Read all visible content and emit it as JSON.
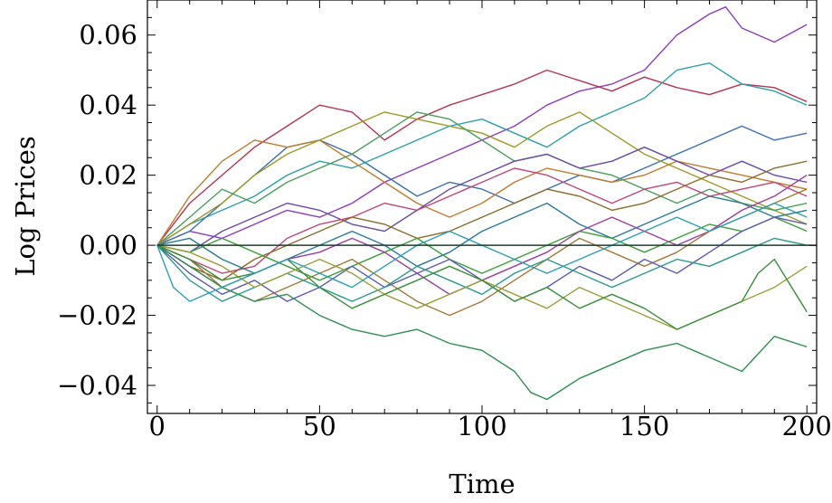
{
  "chart_data": {
    "type": "line",
    "title": "",
    "xlabel": "Time",
    "ylabel": "Log Prices",
    "xlim": [
      -3,
      203
    ],
    "ylim": [
      -0.048,
      0.07
    ],
    "x_ticks": [
      0,
      50,
      100,
      150,
      200
    ],
    "x_tick_labels": [
      "0",
      "50",
      "100",
      "150",
      "200"
    ],
    "y_ticks": [
      -0.04,
      -0.02,
      0.0,
      0.02,
      0.04,
      0.06
    ],
    "y_tick_labels": [
      "−0.04",
      "−0.02",
      "0.00",
      "0.02",
      "0.04",
      "0.06"
    ],
    "grid": false,
    "legend": "none",
    "reference_line": {
      "y": 0.0,
      "color": "#1a3d2b"
    },
    "series_style": "random-walk paths, each a jagged line starting at 0",
    "series": [
      {
        "color": "#8e3bbf",
        "x": [
          0,
          10,
          20,
          30,
          40,
          50,
          60,
          70,
          80,
          90,
          100,
          110,
          120,
          130,
          140,
          150,
          160,
          170,
          175,
          180,
          190,
          200
        ],
        "y": [
          0,
          0.004,
          0.002,
          0.006,
          0.01,
          0.008,
          0.012,
          0.018,
          0.022,
          0.026,
          0.03,
          0.034,
          0.04,
          0.044,
          0.046,
          0.05,
          0.06,
          0.066,
          0.068,
          0.062,
          0.058,
          0.063
        ]
      },
      {
        "color": "#b5344e",
        "x": [
          0,
          10,
          20,
          30,
          40,
          50,
          60,
          70,
          80,
          90,
          100,
          110,
          120,
          130,
          140,
          150,
          160,
          170,
          180,
          190,
          200
        ],
        "y": [
          0,
          0.012,
          0.02,
          0.028,
          0.034,
          0.04,
          0.038,
          0.03,
          0.036,
          0.04,
          0.043,
          0.046,
          0.05,
          0.047,
          0.044,
          0.048,
          0.045,
          0.043,
          0.046,
          0.045,
          0.041
        ]
      },
      {
        "color": "#2f9fa8",
        "x": [
          0,
          10,
          20,
          30,
          40,
          50,
          60,
          70,
          80,
          90,
          100,
          110,
          120,
          130,
          140,
          150,
          160,
          170,
          180,
          190,
          200
        ],
        "y": [
          0,
          0.006,
          0.01,
          0.014,
          0.02,
          0.024,
          0.022,
          0.026,
          0.03,
          0.034,
          0.036,
          0.032,
          0.028,
          0.034,
          0.038,
          0.042,
          0.05,
          0.052,
          0.046,
          0.044,
          0.04
        ]
      },
      {
        "color": "#3b6fb0",
        "x": [
          0,
          10,
          20,
          30,
          40,
          50,
          60,
          70,
          80,
          90,
          100,
          110,
          120,
          130,
          140,
          150,
          160,
          170,
          180,
          190,
          200
        ],
        "y": [
          0,
          0.004,
          0.012,
          0.02,
          0.028,
          0.03,
          0.026,
          0.02,
          0.014,
          0.018,
          0.016,
          0.012,
          0.016,
          0.02,
          0.018,
          0.022,
          0.026,
          0.03,
          0.034,
          0.03,
          0.032
        ]
      },
      {
        "color": "#c17b2f",
        "x": [
          0,
          10,
          20,
          30,
          40,
          50,
          60,
          70,
          80,
          90,
          100,
          110,
          120,
          130,
          140,
          150,
          160,
          170,
          180,
          190,
          200
        ],
        "y": [
          0,
          0.014,
          0.024,
          0.03,
          0.028,
          0.03,
          0.024,
          0.018,
          0.012,
          0.008,
          0.012,
          0.018,
          0.022,
          0.02,
          0.018,
          0.02,
          0.024,
          0.022,
          0.02,
          0.018,
          0.016
        ]
      },
      {
        "color": "#9a9a2a",
        "x": [
          0,
          10,
          20,
          30,
          40,
          50,
          60,
          70,
          80,
          90,
          100,
          110,
          120,
          130,
          140,
          150,
          160,
          170,
          180,
          190,
          200
        ],
        "y": [
          0,
          0.006,
          0.012,
          0.02,
          0.026,
          0.03,
          0.034,
          0.038,
          0.036,
          0.034,
          0.032,
          0.028,
          0.034,
          0.038,
          0.032,
          0.026,
          0.022,
          0.018,
          0.014,
          0.01,
          0.006
        ]
      },
      {
        "color": "#4c9e5c",
        "x": [
          0,
          10,
          20,
          30,
          40,
          50,
          60,
          70,
          80,
          90,
          100,
          110,
          120,
          130,
          140,
          150,
          160,
          170,
          180,
          190,
          200
        ],
        "y": [
          0,
          0.008,
          0.016,
          0.012,
          0.018,
          0.022,
          0.026,
          0.032,
          0.038,
          0.036,
          0.03,
          0.024,
          0.026,
          0.022,
          0.02,
          0.016,
          0.012,
          0.016,
          0.012,
          0.01,
          0.012
        ]
      },
      {
        "color": "#6a4aa8",
        "x": [
          0,
          10,
          20,
          30,
          40,
          50,
          60,
          70,
          80,
          90,
          100,
          110,
          120,
          130,
          140,
          150,
          160,
          170,
          180,
          190,
          200
        ],
        "y": [
          0,
          -0.002,
          0.004,
          0.008,
          0.012,
          0.01,
          0.006,
          0.004,
          0.01,
          0.016,
          0.02,
          0.024,
          0.026,
          0.022,
          0.024,
          0.028,
          0.024,
          0.02,
          0.024,
          0.02,
          0.018
        ]
      },
      {
        "color": "#c0457a",
        "x": [
          0,
          10,
          20,
          30,
          40,
          50,
          60,
          70,
          80,
          90,
          100,
          110,
          120,
          130,
          140,
          150,
          160,
          170,
          180,
          190,
          200
        ],
        "y": [
          0,
          -0.004,
          -0.008,
          -0.006,
          0.002,
          0.006,
          0.008,
          0.012,
          0.01,
          0.014,
          0.018,
          0.022,
          0.02,
          0.016,
          0.012,
          0.016,
          0.018,
          0.014,
          0.016,
          0.018,
          0.014
        ]
      },
      {
        "color": "#8a6b2a",
        "x": [
          0,
          10,
          20,
          30,
          40,
          50,
          60,
          70,
          80,
          90,
          100,
          110,
          120,
          130,
          140,
          150,
          160,
          170,
          180,
          190,
          200
        ],
        "y": [
          0,
          -0.006,
          -0.01,
          -0.004,
          0.0,
          0.004,
          0.008,
          0.006,
          0.002,
          0.004,
          0.008,
          0.012,
          0.016,
          0.014,
          0.01,
          0.012,
          0.016,
          0.02,
          0.018,
          0.022,
          0.024
        ]
      },
      {
        "color": "#2a7a9a",
        "x": [
          0,
          10,
          20,
          30,
          40,
          50,
          60,
          70,
          80,
          90,
          100,
          110,
          120,
          130,
          140,
          150,
          160,
          170,
          180,
          190,
          200
        ],
        "y": [
          0,
          0.002,
          -0.004,
          -0.008,
          -0.004,
          0.0,
          0.004,
          0.0,
          -0.006,
          -0.002,
          0.004,
          0.008,
          0.012,
          0.006,
          0.002,
          0.006,
          0.01,
          0.014,
          0.012,
          0.008,
          0.01
        ]
      },
      {
        "color": "#3d9e3d",
        "x": [
          0,
          10,
          20,
          30,
          40,
          50,
          60,
          70,
          80,
          90,
          100,
          110,
          120,
          130,
          140,
          150,
          160,
          170,
          180,
          190,
          200
        ],
        "y": [
          0,
          -0.002,
          0.002,
          -0.002,
          -0.006,
          -0.01,
          -0.006,
          -0.002,
          0.002,
          -0.004,
          -0.008,
          -0.004,
          0.0,
          0.004,
          0.002,
          -0.002,
          0.002,
          0.006,
          0.004,
          0.008,
          0.004
        ]
      },
      {
        "color": "#9b3e9b",
        "x": [
          0,
          10,
          20,
          30,
          40,
          50,
          60,
          70,
          80,
          90,
          100,
          110,
          120,
          130,
          140,
          150,
          160,
          170,
          180,
          190,
          200
        ],
        "y": [
          0,
          -0.006,
          -0.012,
          -0.008,
          -0.004,
          -0.002,
          0.002,
          -0.002,
          -0.008,
          -0.014,
          -0.01,
          -0.006,
          -0.002,
          0.004,
          0.008,
          0.004,
          0.0,
          0.004,
          0.01,
          0.014,
          0.02
        ]
      },
      {
        "color": "#a07a3a",
        "x": [
          0,
          10,
          20,
          30,
          40,
          50,
          60,
          70,
          80,
          90,
          100,
          110,
          120,
          130,
          140,
          150,
          160,
          170,
          180,
          190,
          200
        ],
        "y": [
          0,
          -0.004,
          -0.012,
          -0.016,
          -0.012,
          -0.008,
          -0.004,
          -0.01,
          -0.016,
          -0.02,
          -0.016,
          -0.01,
          -0.004,
          0.002,
          -0.002,
          -0.006,
          -0.002,
          0.004,
          0.008,
          0.012,
          0.016
        ]
      },
      {
        "color": "#5a5ab4",
        "x": [
          0,
          10,
          20,
          30,
          40,
          50,
          60,
          70,
          80,
          90,
          100,
          110,
          120,
          130,
          140,
          150,
          160,
          170,
          180,
          190,
          200
        ],
        "y": [
          0,
          -0.008,
          -0.014,
          -0.01,
          -0.016,
          -0.012,
          -0.006,
          -0.012,
          -0.008,
          -0.004,
          -0.01,
          -0.016,
          -0.012,
          -0.006,
          -0.01,
          -0.004,
          -0.008,
          -0.002,
          0.004,
          0.008,
          0.006
        ]
      },
      {
        "color": "#2a9a8a",
        "x": [
          0,
          10,
          20,
          30,
          40,
          50,
          60,
          70,
          80,
          90,
          100,
          110,
          120,
          130,
          140,
          150,
          160,
          170,
          180,
          190,
          200
        ],
        "y": [
          0,
          -0.01,
          -0.016,
          -0.012,
          -0.008,
          -0.012,
          -0.016,
          -0.012,
          -0.006,
          -0.01,
          -0.014,
          -0.008,
          -0.004,
          -0.008,
          -0.012,
          -0.008,
          -0.004,
          -0.006,
          -0.002,
          0.002,
          0.0
        ]
      },
      {
        "color": "#9aa03a",
        "x": [
          0,
          10,
          20,
          30,
          40,
          50,
          60,
          70,
          80,
          90,
          100,
          110,
          120,
          130,
          140,
          150,
          160,
          170,
          180,
          190,
          200
        ],
        "y": [
          0,
          -0.002,
          -0.006,
          -0.012,
          -0.008,
          -0.004,
          -0.008,
          -0.014,
          -0.018,
          -0.014,
          -0.01,
          -0.014,
          -0.018,
          -0.012,
          -0.016,
          -0.02,
          -0.024,
          -0.02,
          -0.016,
          -0.012,
          -0.006
        ]
      },
      {
        "color": "#3a8f3a",
        "x": [
          0,
          10,
          20,
          30,
          40,
          50,
          60,
          70,
          80,
          90,
          100,
          110,
          120,
          130,
          140,
          150,
          160,
          170,
          180,
          185,
          190,
          200
        ],
        "y": [
          0,
          -0.004,
          -0.01,
          -0.008,
          -0.004,
          -0.012,
          -0.018,
          -0.014,
          -0.01,
          -0.006,
          -0.01,
          -0.016,
          -0.012,
          -0.018,
          -0.014,
          -0.018,
          -0.024,
          -0.02,
          -0.016,
          -0.008,
          -0.004,
          -0.019
        ]
      },
      {
        "color": "#2f8f4f",
        "x": [
          0,
          10,
          20,
          30,
          40,
          50,
          60,
          70,
          80,
          90,
          100,
          110,
          115,
          120,
          130,
          140,
          150,
          160,
          170,
          180,
          190,
          200
        ],
        "y": [
          0,
          -0.006,
          -0.012,
          -0.016,
          -0.014,
          -0.02,
          -0.024,
          -0.026,
          -0.024,
          -0.028,
          -0.03,
          -0.036,
          -0.042,
          -0.044,
          -0.038,
          -0.034,
          -0.03,
          -0.028,
          -0.032,
          -0.036,
          -0.026,
          -0.029
        ]
      },
      {
        "color": "#2a9fb4",
        "x": [
          0,
          5,
          10,
          20,
          30,
          40,
          50,
          60,
          70,
          80,
          90,
          100,
          110,
          120,
          130,
          140,
          150,
          160,
          170,
          180,
          190,
          200
        ],
        "y": [
          0,
          -0.012,
          -0.016,
          -0.012,
          -0.008,
          -0.004,
          -0.008,
          -0.012,
          -0.006,
          0.0,
          0.004,
          0.0,
          -0.004,
          -0.008,
          -0.004,
          0.0,
          0.004,
          0.008,
          0.004,
          0.008,
          0.012,
          0.008
        ]
      }
    ]
  }
}
